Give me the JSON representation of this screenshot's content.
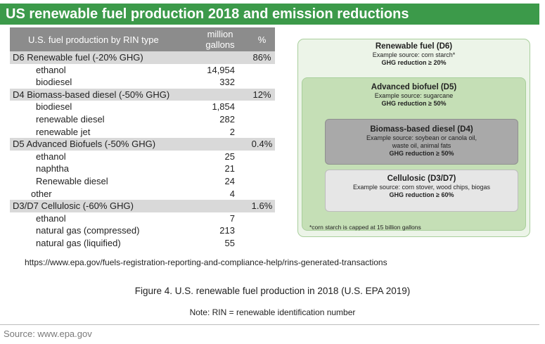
{
  "banner_title": "US renewable fuel production 2018 and emission reductions",
  "table": {
    "header": {
      "col1": "U.S. fuel production by RIN type",
      "col2_line1": "million",
      "col2_line2": "gallons",
      "col3": "%"
    },
    "rows": [
      {
        "label": "D6 Renewable fuel (-20% GHG)",
        "value": "",
        "pct": "86%",
        "kind": "cat"
      },
      {
        "label": "ethanol",
        "value": "14,954",
        "pct": "",
        "kind": "sub"
      },
      {
        "label": "biodiesel",
        "value": "332",
        "pct": "",
        "kind": "sub"
      },
      {
        "label": "D4 Biomass-based diesel (-50% GHG)",
        "value": "",
        "pct": "12%",
        "kind": "cat"
      },
      {
        "label": "biodiesel",
        "value": "1,854",
        "pct": "",
        "kind": "sub"
      },
      {
        "label": "renewable diesel",
        "value": "282",
        "pct": "",
        "kind": "sub"
      },
      {
        "label": "renewable jet",
        "value": "2",
        "pct": "",
        "kind": "sub"
      },
      {
        "label": "D5 Advanced Biofuels (-50% GHG)",
        "value": "",
        "pct": "0.4%",
        "kind": "cat"
      },
      {
        "label": "ethanol",
        "value": "25",
        "pct": "",
        "kind": "sub"
      },
      {
        "label": "naphtha",
        "value": "21",
        "pct": "",
        "kind": "sub"
      },
      {
        "label": "Renewable diesel",
        "value": "24",
        "pct": "",
        "kind": "sub"
      },
      {
        "label": "other",
        "value": "4",
        "pct": "",
        "kind": "sub2"
      },
      {
        "label": "D3/D7 Cellulosic (-60% GHG)",
        "value": "",
        "pct": "1.6%",
        "kind": "cat"
      },
      {
        "label": "ethanol",
        "value": "7",
        "pct": "",
        "kind": "sub"
      },
      {
        "label": "natural gas (compressed)",
        "value": "213",
        "pct": "",
        "kind": "sub"
      },
      {
        "label": "natural gas (liquified)",
        "value": "55",
        "pct": "",
        "kind": "sub"
      }
    ]
  },
  "diagram": {
    "d6": {
      "title": "Renewable fuel (D6)",
      "example": "Example source: corn starch*",
      "ghg": "GHG reduction ≥ 20%"
    },
    "d5": {
      "title": "Advanced biofuel (D5)",
      "example": "Example source: sugarcane",
      "ghg": "GHG reduction ≥  50%"
    },
    "d4": {
      "title": "Biomass-based diesel (D4)",
      "example_line1": "Example source: soybean or canola oil,",
      "example_line2": "waste oil, animal fats",
      "ghg": "GHG reduction ≥  50%"
    },
    "d3": {
      "title": "Cellulosic (D3/D7)",
      "example": "Example source: corn stover, wood chips, biogas",
      "ghg": "GHG reduction ≥ 60%"
    },
    "footnote": "*corn starch is capped at 15 billion gallons"
  },
  "url": "https://www.epa.gov/fuels-registration-reporting-and-compliance-help/rins-generated-transactions",
  "caption": "Figure 4. U.S. renewable fuel production in 2018 (U.S. EPA 2019)",
  "note": "Note: RIN = renewable identification number",
  "source": "Source: www.epa.gov"
}
